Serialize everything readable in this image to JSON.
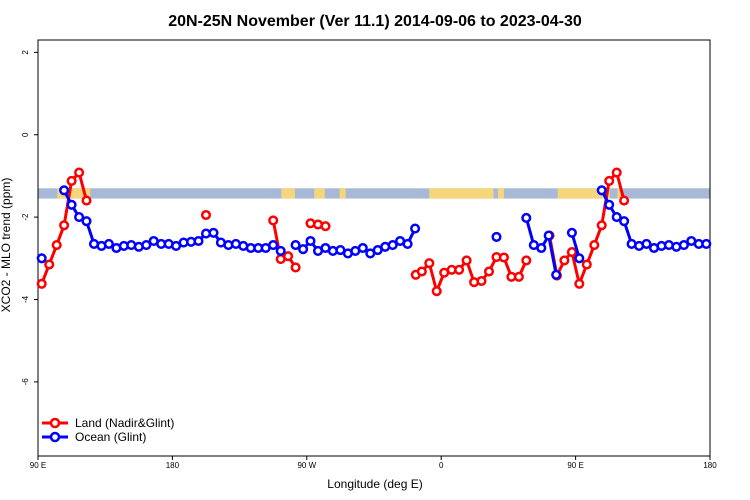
{
  "chart_data": {
    "type": "line",
    "title": "20N-25N November (Ver 11.1)   2014-09-06 to 2023-04-30",
    "xlabel": "Longitude (deg E)",
    "ylabel": "XCO2 - MLO trend (ppm)",
    "xlim": [
      90,
      540
    ],
    "ylim": [
      -7.8,
      2.3
    ],
    "x_ticks": [
      {
        "value": 90,
        "label": "90 E"
      },
      {
        "value": 180,
        "label": "180"
      },
      {
        "value": 270,
        "label": "90 W"
      },
      {
        "value": 360,
        "label": "0"
      },
      {
        "value": 450,
        "label": "90 E"
      },
      {
        "value": 540,
        "label": "180"
      }
    ],
    "y_ticks": [
      {
        "value": 2,
        "label": "2"
      },
      {
        "value": 0,
        "label": "0"
      },
      {
        "value": -2,
        "label": "-2"
      },
      {
        "value": -4,
        "label": "-4"
      },
      {
        "value": -6,
        "label": "-6"
      }
    ],
    "map_strip": {
      "y_low": -1.55,
      "y_high": -1.3,
      "ocean_color": "#a7b9d6",
      "land_color": "#f5d67a"
    },
    "legend": {
      "position": "bottom-left"
    },
    "series": [
      {
        "name": "Land (Nadir&Glint)",
        "color": "#ff0000",
        "segments": [
          [
            [
              92.5,
              -3.62
            ],
            [
              97.5,
              -3.15
            ],
            [
              102.5,
              -2.68
            ],
            [
              107.5,
              -2.2
            ],
            [
              112.5,
              -1.12
            ],
            [
              117.5,
              -0.92
            ],
            [
              122.5,
              -1.6
            ]
          ],
          [
            [
              202.5,
              -1.95
            ]
          ],
          [
            [
              247.5,
              -2.08
            ],
            [
              252.5,
              -3.02
            ],
            [
              257.5,
              -2.95
            ],
            [
              262.5,
              -3.22
            ]
          ],
          [
            [
              272.5,
              -2.15
            ],
            [
              277.5,
              -2.18
            ],
            [
              282.5,
              -2.22
            ]
          ],
          [
            [
              343,
              -3.4
            ],
            [
              347,
              -3.32
            ],
            [
              352,
              -3.12
            ],
            [
              357,
              -3.8
            ],
            [
              362,
              -3.35
            ],
            [
              367,
              -3.28
            ],
            [
              372,
              -3.28
            ],
            [
              377,
              -3.05
            ],
            [
              382,
              -3.58
            ],
            [
              387,
              -3.55
            ],
            [
              392,
              -3.32
            ],
            [
              397,
              -2.97
            ],
            [
              402,
              -2.98
            ],
            [
              407,
              -3.45
            ],
            [
              412,
              -3.45
            ],
            [
              417,
              -3.05
            ]
          ],
          [
            [
              432.5,
              -2.45
            ],
            [
              437.5,
              -3.42
            ],
            [
              442.5,
              -3.05
            ],
            [
              447.5,
              -2.85
            ],
            [
              452.5,
              -3.62
            ],
            [
              457.5,
              -3.15
            ],
            [
              462.5,
              -2.68
            ],
            [
              467.5,
              -2.2
            ],
            [
              472.5,
              -1.12
            ],
            [
              477.5,
              -0.92
            ],
            [
              482.5,
              -1.6
            ]
          ]
        ]
      },
      {
        "name": "Ocean (Glint)",
        "color": "#0000ff",
        "segments": [
          [
            [
              92.5,
              -3.0
            ]
          ],
          [
            [
              107.5,
              -1.35
            ],
            [
              112.5,
              -1.7
            ],
            [
              117.5,
              -2.0
            ],
            [
              122.5,
              -2.1
            ],
            [
              127.5,
              -2.65
            ],
            [
              132.5,
              -2.7
            ],
            [
              137.5,
              -2.65
            ],
            [
              142.5,
              -2.75
            ],
            [
              147.5,
              -2.7
            ],
            [
              152.5,
              -2.68
            ],
            [
              157.5,
              -2.72
            ],
            [
              162.5,
              -2.68
            ],
            [
              167.5,
              -2.58
            ],
            [
              172.5,
              -2.65
            ],
            [
              177.5,
              -2.65
            ],
            [
              182.5,
              -2.7
            ],
            [
              187.5,
              -2.62
            ],
            [
              192.5,
              -2.6
            ],
            [
              197.5,
              -2.58
            ],
            [
              202.5,
              -2.4
            ],
            [
              207.5,
              -2.38
            ],
            [
              212.5,
              -2.62
            ],
            [
              217.5,
              -2.68
            ],
            [
              222.5,
              -2.65
            ],
            [
              227.5,
              -2.7
            ],
            [
              232.5,
              -2.75
            ],
            [
              237.5,
              -2.75
            ],
            [
              242.5,
              -2.75
            ],
            [
              247.5,
              -2.68
            ],
            [
              252.5,
              -2.82
            ]
          ],
          [
            [
              262.5,
              -2.68
            ],
            [
              267.5,
              -2.78
            ],
            [
              272.5,
              -2.58
            ],
            [
              277.5,
              -2.82
            ],
            [
              282.5,
              -2.75
            ],
            [
              287.5,
              -2.82
            ],
            [
              292.5,
              -2.8
            ],
            [
              297.5,
              -2.88
            ],
            [
              302.5,
              -2.82
            ],
            [
              307.5,
              -2.75
            ],
            [
              312.5,
              -2.88
            ],
            [
              317.5,
              -2.8
            ],
            [
              322.5,
              -2.72
            ],
            [
              327.5,
              -2.68
            ],
            [
              332.5,
              -2.58
            ],
            [
              337.5,
              -2.65
            ],
            [
              342.5,
              -2.28
            ]
          ],
          [
            [
              397,
              -2.48
            ]
          ],
          [
            [
              417,
              -2.02
            ],
            [
              422,
              -2.68
            ],
            [
              427,
              -2.75
            ],
            [
              432,
              -2.45
            ],
            [
              437,
              -3.4
            ]
          ],
          [
            [
              447.5,
              -2.38
            ],
            [
              452.5,
              -3.0
            ]
          ],
          [
            [
              467.5,
              -1.35
            ],
            [
              472.5,
              -1.7
            ],
            [
              477.5,
              -2.0
            ],
            [
              482.5,
              -2.1
            ],
            [
              487.5,
              -2.65
            ],
            [
              492.5,
              -2.7
            ],
            [
              497.5,
              -2.65
            ],
            [
              502.5,
              -2.75
            ],
            [
              507.5,
              -2.7
            ],
            [
              512.5,
              -2.68
            ],
            [
              517.5,
              -2.72
            ],
            [
              522.5,
              -2.68
            ],
            [
              527.5,
              -2.58
            ],
            [
              532.5,
              -2.65
            ],
            [
              537.5,
              -2.65
            ]
          ]
        ]
      }
    ]
  }
}
